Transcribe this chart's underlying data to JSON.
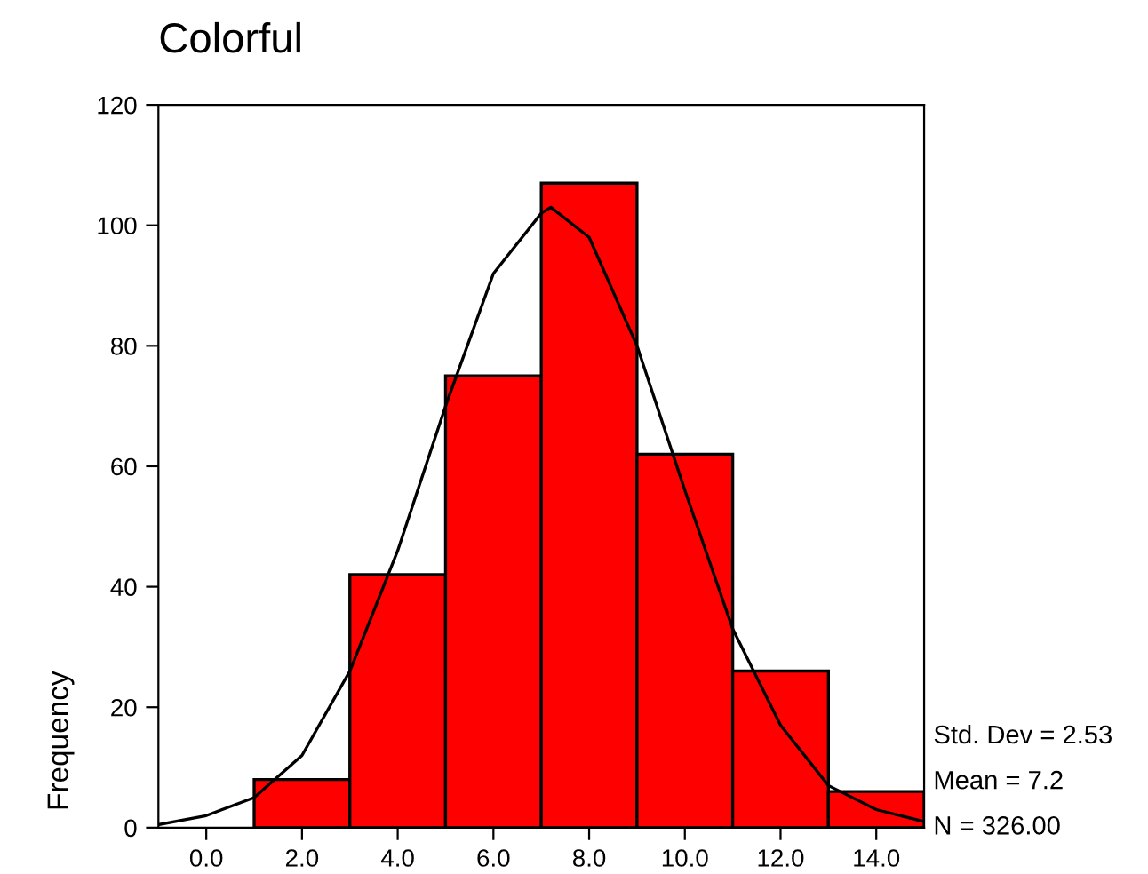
{
  "chart_data": {
    "type": "histogram",
    "title": "Colorful",
    "ylabel": "Frequency",
    "bins": [
      1,
      3,
      5,
      7,
      9,
      11,
      13,
      15
    ],
    "values": [
      8,
      42,
      75,
      107,
      62,
      26,
      6
    ],
    "color": "#ff0000",
    "series": [
      {
        "type": "line",
        "color": "#000000",
        "x": [
          -1,
          0,
          1,
          2,
          3,
          4,
          5,
          6,
          7,
          7.2,
          8,
          9,
          10,
          11,
          12,
          13,
          14,
          15
        ],
        "values": [
          0.5,
          2,
          5,
          12,
          26,
          46,
          70,
          92,
          102,
          103,
          98,
          80,
          56,
          33,
          17,
          7,
          3,
          1
        ]
      }
    ],
    "xlim": [
      -1,
      15
    ],
    "xticks": [
      {
        "value": 0,
        "label": "0.0"
      },
      {
        "value": 2,
        "label": "2.0"
      },
      {
        "value": 4,
        "label": "4.0"
      },
      {
        "value": 6,
        "label": "6.0"
      },
      {
        "value": 8,
        "label": "8.0"
      },
      {
        "value": 10,
        "label": "10.0"
      },
      {
        "value": 12,
        "label": "12.0"
      },
      {
        "value": 14,
        "label": "14.0"
      }
    ],
    "ylim": [
      0,
      120
    ],
    "yticks": [
      0,
      20,
      40,
      60,
      80,
      100,
      120
    ],
    "annotations": [
      "Std. Dev = 2.53",
      "Mean = 7.2",
      "N = 326.00"
    ]
  }
}
